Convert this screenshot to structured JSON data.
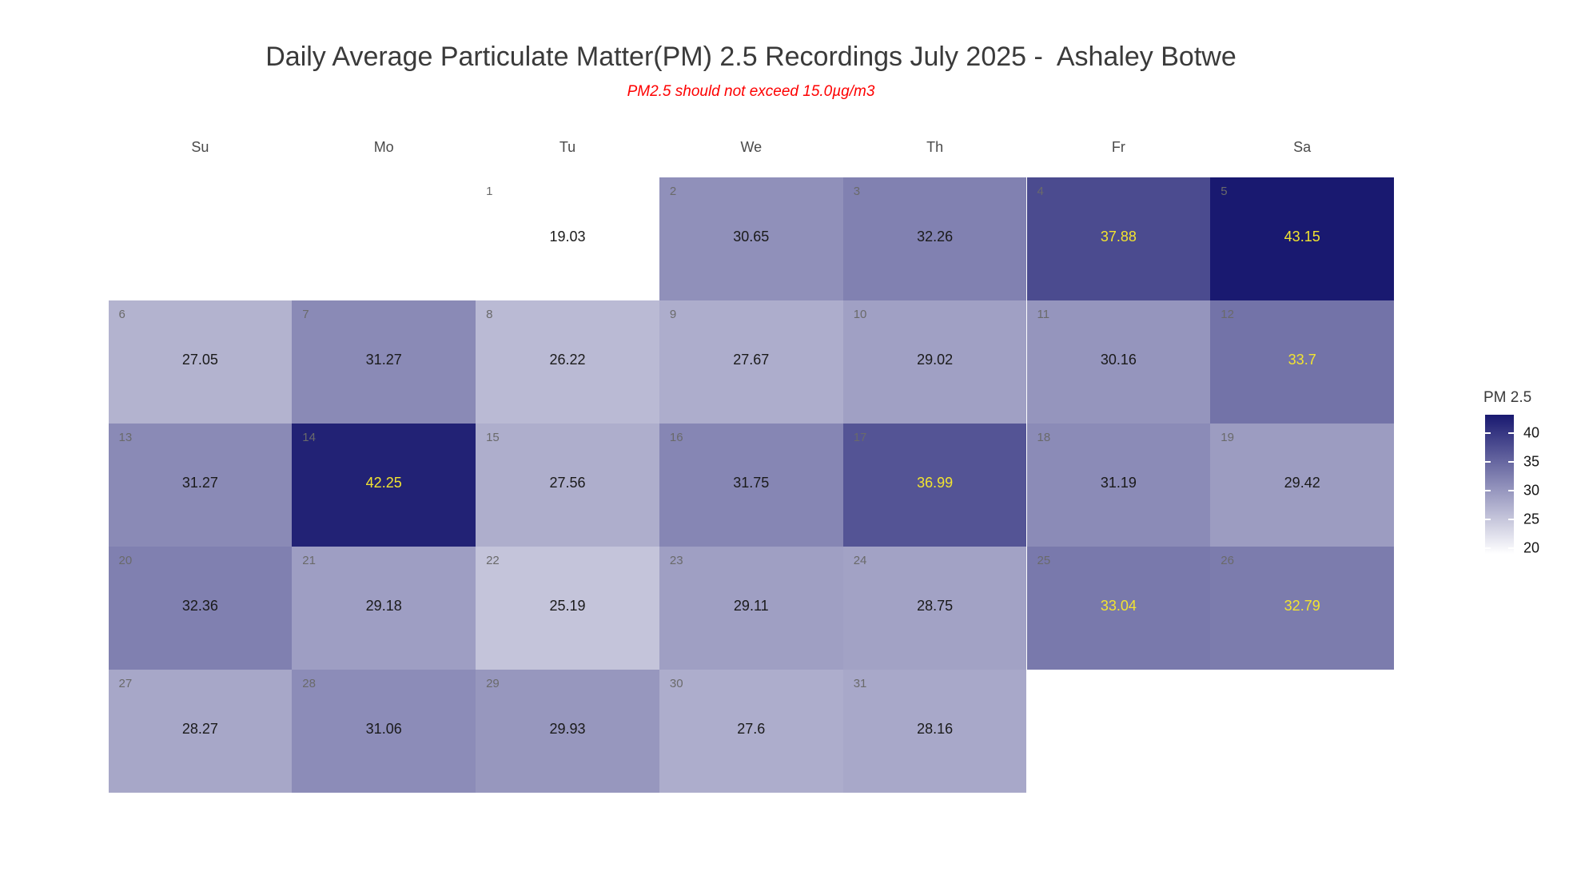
{
  "colors": {
    "background": "#ffffff",
    "title_text": "#3a3a3a",
    "subtitle_text": "#fe0000",
    "header_text": "#4a4a4a",
    "day_number_text": "#6a6a6a",
    "value_text_dark": "#1a1a1a",
    "value_text_light": "#f2e430",
    "scale_low": "#ffffff",
    "scale_high": "#191970"
  },
  "chart_data": {
    "type": "heatmap",
    "subtype": "calendar-heatmap",
    "title": "Daily Average Particulate Matter(PM) 2.5 Recordings July 2025 -  Ashaley Botwe",
    "subtitle": "PM2.5 should not exceed 15.0µg/m3",
    "month": "July 2025",
    "location": "Ashaley Botwe",
    "weekday_columns": [
      "Su",
      "Mo",
      "Tu",
      "We",
      "Th",
      "Fr",
      "Sa"
    ],
    "first_day_column": 2,
    "legend_title": "PM 2.5",
    "legend_ticks": [
      40,
      35,
      30,
      25,
      20
    ],
    "scale": {
      "min": 19.03,
      "max": 43.15,
      "low_color": "#ffffff",
      "high_color": "#191970",
      "light_text_above": 32.5
    },
    "days": [
      {
        "day": 1,
        "value": 19.03
      },
      {
        "day": 2,
        "value": 30.65
      },
      {
        "day": 3,
        "value": 32.26
      },
      {
        "day": 4,
        "value": 37.88
      },
      {
        "day": 5,
        "value": 43.15
      },
      {
        "day": 6,
        "value": 27.05
      },
      {
        "day": 7,
        "value": 31.27
      },
      {
        "day": 8,
        "value": 26.22
      },
      {
        "day": 9,
        "value": 27.67
      },
      {
        "day": 10,
        "value": 29.02
      },
      {
        "day": 11,
        "value": 30.16
      },
      {
        "day": 12,
        "value": 33.7
      },
      {
        "day": 13,
        "value": 31.27
      },
      {
        "day": 14,
        "value": 42.25
      },
      {
        "day": 15,
        "value": 27.56
      },
      {
        "day": 16,
        "value": 31.75
      },
      {
        "day": 17,
        "value": 36.99
      },
      {
        "day": 18,
        "value": 31.19
      },
      {
        "day": 19,
        "value": 29.42
      },
      {
        "day": 20,
        "value": 32.36
      },
      {
        "day": 21,
        "value": 29.18
      },
      {
        "day": 22,
        "value": 25.19
      },
      {
        "day": 23,
        "value": 29.11
      },
      {
        "day": 24,
        "value": 28.75
      },
      {
        "day": 25,
        "value": 33.04
      },
      {
        "day": 26,
        "value": 32.79
      },
      {
        "day": 27,
        "value": 28.27
      },
      {
        "day": 28,
        "value": 31.06
      },
      {
        "day": 29,
        "value": 29.93
      },
      {
        "day": 30,
        "value": 27.6
      },
      {
        "day": 31,
        "value": 28.16
      }
    ]
  }
}
